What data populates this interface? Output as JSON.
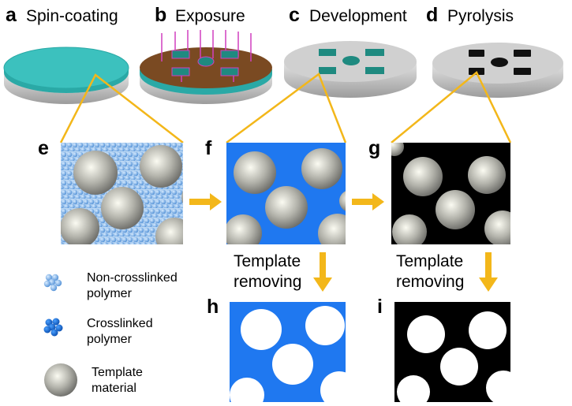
{
  "steps": [
    {
      "letter": "a",
      "label": "Spin-coating"
    },
    {
      "letter": "b",
      "label": "Exposure"
    },
    {
      "letter": "c",
      "label": "Development"
    },
    {
      "letter": "d",
      "label": "Pyrolysis"
    }
  ],
  "panels": {
    "e": "e",
    "f": "f",
    "g": "g",
    "h": "h",
    "i": "i"
  },
  "template_removing": {
    "line1": "Template",
    "line2": "removing"
  },
  "legend": [
    {
      "line1": "Non-crosslinked",
      "line2": "polymer"
    },
    {
      "line1": "Crosslinked",
      "line2": "polymer"
    },
    {
      "line1": "Template",
      "line2": "material"
    }
  ],
  "colors": {
    "film": "#3cc1be",
    "exposure_film": "#7a4a22",
    "uv_light": "#d13fbf",
    "pattern_green": "#1f8a80",
    "crosslinked_blue": "#1f78f0",
    "carbon_black": "#000000",
    "arrow": "#f3b71a",
    "substrate": "#c9c9c9"
  }
}
